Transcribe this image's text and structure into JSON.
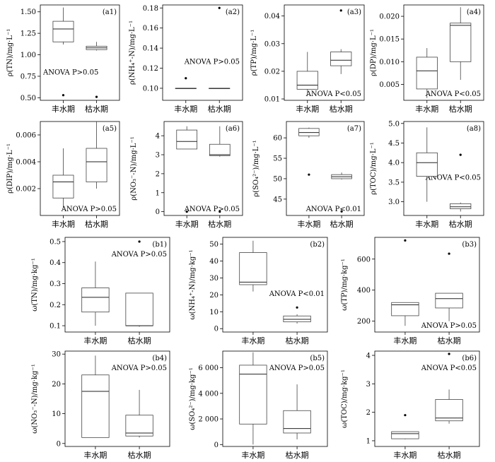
{
  "chart_data": [
    {
      "id": "a1",
      "type": "box",
      "panel_label": "(a1)",
      "ylabel": "ρ(TN)/mg·L⁻¹",
      "categories": [
        "丰水期",
        "枯水期"
      ],
      "ylim": [
        0.47,
        1.58
      ],
      "yticks": [
        0.5,
        0.75,
        1.0,
        1.25,
        1.5
      ],
      "ytick_labels": [
        "0.50",
        "0.75",
        "1.00",
        "1.25",
        "1.50"
      ],
      "annotation": "ANOVA P>0.05",
      "ann_pos": "bottom-left",
      "boxes": [
        {
          "whisker_low": 1.12,
          "q1": 1.15,
          "median": 1.3,
          "q3": 1.39,
          "whisker_high": 1.55,
          "outliers": [
            0.53
          ]
        },
        {
          "whisker_low": 1.05,
          "q1": 1.06,
          "median": 1.08,
          "q3": 1.1,
          "whisker_high": 1.15,
          "outliers": [
            0.51
          ]
        }
      ]
    },
    {
      "id": "a2",
      "type": "box",
      "panel_label": "(a2)",
      "ylabel": "ρ(NH₄⁺-N)/mg·L⁻¹",
      "categories": [
        "丰水期",
        "枯水期"
      ],
      "ylim": [
        0.088,
        0.183
      ],
      "yticks": [
        0.1,
        0.12,
        0.14,
        0.16,
        0.18
      ],
      "ytick_labels": [
        "0.10",
        "0.12",
        "0.14",
        "0.16",
        "0.18"
      ],
      "annotation": "ANOVA P>0.05",
      "ann_pos": "middle-right",
      "boxes": [
        {
          "whisker_low": 0.1,
          "q1": 0.1,
          "median": 0.1,
          "q3": 0.1,
          "whisker_high": 0.1,
          "outliers": [
            0.11
          ]
        },
        {
          "whisker_low": 0.1,
          "q1": 0.1,
          "median": 0.1,
          "q3": 0.1,
          "whisker_high": 0.1,
          "outliers": [
            0.18
          ]
        }
      ]
    },
    {
      "id": "a3",
      "type": "box",
      "panel_label": "(a3)",
      "ylabel": "ρ(TP)/mg·L⁻¹",
      "categories": [
        "丰水期",
        "枯水期"
      ],
      "ylim": [
        0.0095,
        0.044
      ],
      "yticks": [
        0.01,
        0.02,
        0.03,
        0.04
      ],
      "ytick_labels": [
        "0.01",
        "0.02",
        "0.03",
        "0.04"
      ],
      "annotation": "ANOVA P<0.05",
      "ann_pos": "bottom-right",
      "boxes": [
        {
          "whisker_low": 0.011,
          "q1": 0.0135,
          "median": 0.015,
          "q3": 0.02,
          "whisker_high": 0.027,
          "outliers": []
        },
        {
          "whisker_low": 0.019,
          "q1": 0.022,
          "median": 0.024,
          "q3": 0.027,
          "whisker_high": 0.028,
          "outliers": [
            0.042
          ]
        }
      ]
    },
    {
      "id": "a4",
      "type": "box",
      "panel_label": "(a4)",
      "ylabel": "ρ(DP)/mg·L⁻¹",
      "categories": [
        "丰水期",
        "枯水期"
      ],
      "ylim": [
        0.0015,
        0.0225
      ],
      "yticks": [
        0.005,
        0.01,
        0.015,
        0.02
      ],
      "ytick_labels": [
        "0.005",
        "0.010",
        "0.015",
        "0.020"
      ],
      "annotation": "ANOVA P<0.05",
      "ann_pos": "bottom-right",
      "boxes": [
        {
          "whisker_low": 0.002,
          "q1": 0.004,
          "median": 0.008,
          "q3": 0.011,
          "whisker_high": 0.013,
          "outliers": []
        },
        {
          "whisker_low": 0.006,
          "q1": 0.01,
          "median": 0.018,
          "q3": 0.0185,
          "whisker_high": 0.022,
          "outliers": []
        }
      ]
    },
    {
      "id": "a5",
      "type": "box",
      "panel_label": "(a5)",
      "ylabel": "ρ(DIP)/mg·L⁻¹",
      "categories": [
        "丰水期",
        "枯水期"
      ],
      "ylim": [
        0.0,
        0.007
      ],
      "yticks": [
        0.002,
        0.004,
        0.006
      ],
      "ytick_labels": [
        "0.002",
        "0.004",
        "0.006"
      ],
      "annotation": "ANOVA P>0.05",
      "ann_pos": "bottom-right",
      "boxes": [
        {
          "whisker_low": 0.0005,
          "q1": 0.0013,
          "median": 0.0025,
          "q3": 0.003,
          "whisker_high": 0.005,
          "outliers": []
        },
        {
          "whisker_low": 0.002,
          "q1": 0.0025,
          "median": 0.004,
          "q3": 0.005,
          "whisker_high": 0.007,
          "outliers": []
        }
      ]
    },
    {
      "id": "a6",
      "type": "box",
      "panel_label": "(a6)",
      "ylabel": "ρ(NO₃⁻-N)/mg·L⁻¹",
      "categories": [
        "丰水期",
        "枯水期"
      ],
      "ylim": [
        -0.2,
        4.75
      ],
      "yticks": [
        0,
        1,
        2,
        3,
        4
      ],
      "ytick_labels": [
        "0",
        "1",
        "2",
        "3",
        "4"
      ],
      "annotation": "ANOVA P>0.05",
      "ann_pos": "bottom-right",
      "boxes": [
        {
          "whisker_low": 3.3,
          "q1": 3.3,
          "median": 3.7,
          "q3": 4.3,
          "whisker_high": 4.5,
          "outliers": [
            0.0
          ]
        },
        {
          "whisker_low": 2.9,
          "q1": 2.95,
          "median": 3.0,
          "q3": 3.55,
          "whisker_high": 4.5,
          "outliers": [
            0.0
          ]
        }
      ]
    },
    {
      "id": "a7",
      "type": "box",
      "panel_label": "(a7)",
      "ylabel": "ρ(SO₄²⁻)/mg·L⁻¹",
      "categories": [
        "丰水期",
        "枯水期"
      ],
      "ylim": [
        41,
        64
      ],
      "yticks": [
        45,
        50,
        55,
        60
      ],
      "ytick_labels": [
        "45",
        "50",
        "55",
        "60"
      ],
      "annotation": "ANOVA P<0.01",
      "ann_pos": "bottom-right",
      "boxes": [
        {
          "whisker_low": 60,
          "q1": 60.5,
          "median": 61.3,
          "q3": 62.3,
          "whisker_high": 62.5,
          "outliers": [
            51
          ]
        },
        {
          "whisker_low": 49.8,
          "q1": 50,
          "median": 50.5,
          "q3": 51,
          "whisker_high": 51.5,
          "outliers": [
            42
          ]
        }
      ]
    },
    {
      "id": "a8",
      "type": "box",
      "panel_label": "(a8)",
      "ylabel": "ρ(TOC)/mg·L⁻¹",
      "categories": [
        "丰水期",
        "枯水期"
      ],
      "ylim": [
        2.65,
        5.05
      ],
      "yticks": [
        3.0,
        3.5,
        4.0,
        4.5,
        5.0
      ],
      "ytick_labels": [
        "3.0",
        "3.5",
        "4.0",
        "4.5",
        "5.0"
      ],
      "annotation": "ANOVA P<0.05",
      "ann_pos": "middle-right",
      "boxes": [
        {
          "whisker_low": 3.0,
          "q1": 3.65,
          "median": 4.0,
          "q3": 4.25,
          "whisker_high": 4.9,
          "outliers": []
        },
        {
          "whisker_low": 2.75,
          "q1": 2.82,
          "median": 2.87,
          "q3": 2.95,
          "whisker_high": 2.98,
          "outliers": [
            4.2
          ]
        }
      ]
    },
    {
      "id": "b1",
      "type": "box",
      "panel_label": "(b1)",
      "ylabel": "ω(TN)/mg·kg⁻¹",
      "categories": [
        "丰水期",
        "枯水期"
      ],
      "ylim": [
        0.07,
        0.52
      ],
      "yticks": [
        0.1,
        0.2,
        0.3,
        0.4,
        0.5
      ],
      "ytick_labels": [
        "0.1",
        "0.2",
        "0.3",
        "0.4",
        "0.5"
      ],
      "annotation": "ANOVA P>0.05",
      "ann_pos": "top-right",
      "boxes": [
        {
          "whisker_low": 0.1,
          "q1": 0.165,
          "median": 0.235,
          "q3": 0.28,
          "whisker_high": 0.405,
          "outliers": []
        },
        {
          "whisker_low": 0.095,
          "q1": 0.1,
          "median": 0.1,
          "q3": 0.255,
          "whisker_high": 0.255,
          "outliers": [
            0.5
          ]
        }
      ]
    },
    {
      "id": "b2",
      "type": "box",
      "panel_label": "(b2)",
      "ylabel": "ω(NH₄⁺-N)/mg·kg⁻¹",
      "categories": [
        "丰水期",
        "枯水期"
      ],
      "ylim": [
        -2,
        54
      ],
      "yticks": [
        0,
        10,
        20,
        30,
        40,
        50
      ],
      "ytick_labels": [
        "0",
        "10",
        "20",
        "30",
        "40",
        "50"
      ],
      "annotation": "ANOVA P<0.01",
      "ann_pos": "middle-right",
      "boxes": [
        {
          "whisker_low": 22,
          "q1": 26,
          "median": 27.5,
          "q3": 45,
          "whisker_high": 52,
          "outliers": []
        },
        {
          "whisker_low": 3,
          "q1": 4,
          "median": 5.5,
          "q3": 7.5,
          "whisker_high": 8.5,
          "outliers": [
            12.5
          ]
        }
      ]
    },
    {
      "id": "b3",
      "type": "box",
      "panel_label": "(b3)",
      "ylabel": "ω(TP)/mg·kg⁻¹",
      "categories": [
        "丰水期",
        "枯水期"
      ],
      "ylim": [
        130,
        740
      ],
      "yticks": [
        200,
        400,
        600
      ],
      "ytick_labels": [
        "200",
        "400",
        "600"
      ],
      "annotation": "ANOVA P>0.05",
      "ann_pos": "bottom-right",
      "boxes": [
        {
          "whisker_low": 170,
          "q1": 235,
          "median": 305,
          "q3": 320,
          "whisker_high": 320,
          "outliers": [
            720
          ]
        },
        {
          "whisker_low": 200,
          "q1": 285,
          "median": 345,
          "q3": 380,
          "whisker_high": 380,
          "outliers": [
            635
          ]
        }
      ]
    },
    {
      "id": "b4",
      "type": "box",
      "panel_label": "(b4)",
      "ylabel": "ω(NO₃⁻-N)/mg·kg⁻¹",
      "categories": [
        "丰水期",
        "枯水期"
      ],
      "ylim": [
        -1,
        31
      ],
      "yticks": [
        0,
        10,
        20,
        30
      ],
      "ytick_labels": [
        "0",
        "10",
        "20",
        "30"
      ],
      "annotation": "ANOVA P>0.05",
      "ann_pos": "top-right",
      "boxes": [
        {
          "whisker_low": 2,
          "q1": 2,
          "median": 17.5,
          "q3": 23,
          "whisker_high": 29.5,
          "outliers": []
        },
        {
          "whisker_low": 2,
          "q1": 2.5,
          "median": 3.5,
          "q3": 9.5,
          "whisker_high": 18,
          "outliers": []
        }
      ]
    },
    {
      "id": "b5",
      "type": "box",
      "panel_label": "(b5)",
      "ylabel": "ω(SO₄²⁻)/mg·kg⁻¹",
      "categories": [
        "丰水期",
        "枯水期"
      ],
      "ylim": [
        -150,
        7300
      ],
      "yticks": [
        0,
        2000,
        4000,
        6000
      ],
      "ytick_labels": [
        "0",
        "2 000",
        "4 000",
        "6 000"
      ],
      "annotation": "ANOVA P>0.05",
      "ann_pos": "top-right",
      "boxes": [
        {
          "whisker_low": 0,
          "q1": 1600,
          "median": 5500,
          "q3": 6200,
          "whisker_high": 7200,
          "outliers": []
        },
        {
          "whisker_low": 400,
          "q1": 900,
          "median": 1250,
          "q3": 2650,
          "whisker_high": 4700,
          "outliers": []
        }
      ]
    },
    {
      "id": "b6",
      "type": "box",
      "panel_label": "(b6)",
      "ylabel": "ω(TOC)/mg·kg⁻¹",
      "categories": [
        "丰水期",
        "枯水期"
      ],
      "ylim": [
        0.8,
        4.15
      ],
      "yticks": [
        1,
        2,
        3,
        4
      ],
      "ytick_labels": [
        "1",
        "2",
        "3",
        "4"
      ],
      "annotation": "ANOVA P<0.05",
      "ann_pos": "top-right",
      "boxes": [
        {
          "whisker_low": 1.05,
          "q1": 1.07,
          "median": 1.25,
          "q3": 1.32,
          "whisker_high": 1.32,
          "outliers": [
            1.9
          ]
        },
        {
          "whisker_low": 1.6,
          "q1": 1.7,
          "median": 1.8,
          "q3": 2.45,
          "whisker_high": 2.8,
          "outliers": [
            4.05
          ]
        }
      ]
    }
  ]
}
